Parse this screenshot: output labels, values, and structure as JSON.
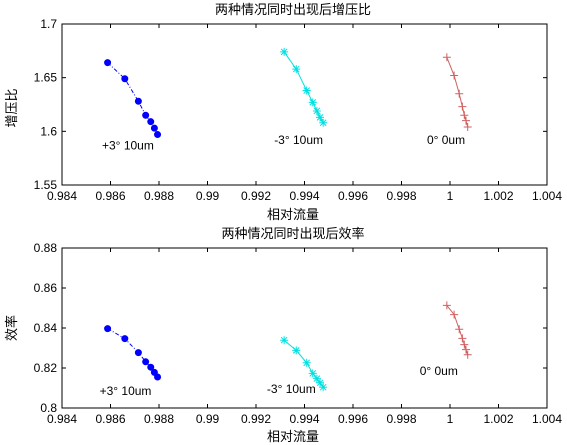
{
  "chart_data": [
    {
      "type": "line",
      "title": "两种情况同时出现后增压比",
      "xlabel": "相对流量",
      "ylabel": "增压比",
      "xlim": [
        0.984,
        1.004
      ],
      "ylim": [
        1.55,
        1.7
      ],
      "xticks": [
        0.984,
        0.986,
        0.988,
        0.99,
        0.992,
        0.994,
        0.996,
        0.998,
        1,
        1.002,
        1.004
      ],
      "xtick_labels": [
        "0.984",
        "0.986",
        "0.988",
        "0.99",
        "0.992",
        "0.994",
        "0.996",
        "0.998",
        "1",
        "1.002",
        "1.004"
      ],
      "yticks": [
        1.55,
        1.6,
        1.65,
        1.7
      ],
      "ytick_labels": [
        "1.55",
        "1.6",
        "1.65",
        "1.7"
      ],
      "grid": false,
      "series": [
        {
          "color": "#0000ff",
          "marker": "dot",
          "line_style": "dash-dot",
          "x": [
            0.98588,
            0.98659,
            0.98715,
            0.98745,
            0.98766,
            0.98781,
            0.98794
          ],
          "y": [
            1.664,
            1.649,
            1.628,
            1.615,
            1.609,
            1.603,
            1.597
          ]
        },
        {
          "color": "#00e0e0",
          "marker": "star",
          "line_style": "solid",
          "x": [
            0.99316,
            0.99366,
            0.99409,
            0.99434,
            0.99451,
            0.99464,
            0.99477
          ],
          "y": [
            1.674,
            1.658,
            1.638,
            1.627,
            1.619,
            1.613,
            1.608
          ]
        },
        {
          "color": "#d06060",
          "marker": "plus",
          "line_style": "solid",
          "x": [
            0.99987,
            1.00017,
            1.00038,
            1.00051,
            1.00059,
            1.00066,
            1.00073
          ],
          "y": [
            1.669,
            1.652,
            1.635,
            1.623,
            1.615,
            1.61,
            1.604
          ]
        }
      ],
      "annotations": [
        {
          "text": "+3° 10um",
          "x": 0.98565,
          "y": 1.583
        },
        {
          "text": "-3° 10um",
          "x": 0.99275,
          "y": 1.588
        },
        {
          "text": "0° 0um",
          "x": 0.99905,
          "y": 1.588
        }
      ]
    },
    {
      "type": "line",
      "title": "两种情况同时出现后效率",
      "xlabel": "相对流量",
      "ylabel": "效率",
      "xlim": [
        0.984,
        1.004
      ],
      "ylim": [
        0.8,
        0.88
      ],
      "xticks": [
        0.984,
        0.986,
        0.988,
        0.99,
        0.992,
        0.994,
        0.996,
        0.998,
        1,
        1.002,
        1.004
      ],
      "xtick_labels": [
        "0.984",
        "0.986",
        "0.988",
        "0.99",
        "0.992",
        "0.994",
        "0.996",
        "0.998",
        "1",
        "1.002",
        "1.004"
      ],
      "yticks": [
        0.8,
        0.82,
        0.84,
        0.86,
        0.88
      ],
      "ytick_labels": [
        "0.8",
        "0.82",
        "0.84",
        "0.86",
        "0.88"
      ],
      "grid": false,
      "series": [
        {
          "color": "#0000ff",
          "marker": "dot",
          "line_style": "dash-dot",
          "x": [
            0.98588,
            0.98659,
            0.98715,
            0.98745,
            0.98766,
            0.98781,
            0.98794
          ],
          "y": [
            0.8397,
            0.8347,
            0.8277,
            0.8231,
            0.8204,
            0.8178,
            0.8155
          ]
        },
        {
          "color": "#00e0e0",
          "marker": "star",
          "line_style": "solid",
          "x": [
            0.99316,
            0.99366,
            0.99409,
            0.99434,
            0.99451,
            0.99464,
            0.99477
          ],
          "y": [
            0.8339,
            0.8288,
            0.8226,
            0.8173,
            0.8147,
            0.8126,
            0.8104
          ]
        },
        {
          "color": "#d06060",
          "marker": "plus",
          "line_style": "solid",
          "x": [
            0.99987,
            1.00017,
            1.00038,
            1.00051,
            1.00059,
            1.00066,
            1.00073
          ],
          "y": [
            0.8513,
            0.8467,
            0.8394,
            0.8348,
            0.8317,
            0.8292,
            0.8266
          ]
        }
      ],
      "annotations": [
        {
          "text": "+3° 10um",
          "x": 0.98555,
          "y": 0.8065
        },
        {
          "text": "-3° 10um",
          "x": 0.99245,
          "y": 0.8075
        },
        {
          "text": "0° 0um",
          "x": 0.99875,
          "y": 0.8165
        }
      ]
    }
  ]
}
